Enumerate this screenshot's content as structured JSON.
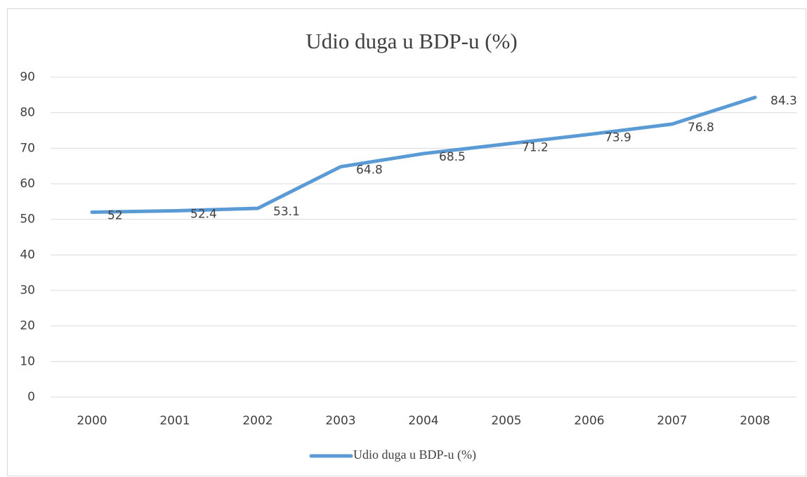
{
  "chart_data": {
    "type": "line",
    "title": "Udio duga u BDP-u (%)",
    "categories": [
      "2000",
      "2001",
      "2002",
      "2003",
      "2004",
      "2005",
      "2006",
      "2007",
      "2008"
    ],
    "series": [
      {
        "name": "Udio duga u BDP-u (%)",
        "color": "#5b9bd5",
        "values": [
          52,
          52.4,
          53.1,
          64.8,
          68.5,
          71.2,
          73.9,
          76.8,
          84.3
        ]
      }
    ],
    "ylim": [
      0,
      90
    ],
    "yticks": [
      0,
      10,
      20,
      30,
      40,
      50,
      60,
      70,
      80,
      90
    ],
    "grid": true,
    "legend": "bottom"
  }
}
